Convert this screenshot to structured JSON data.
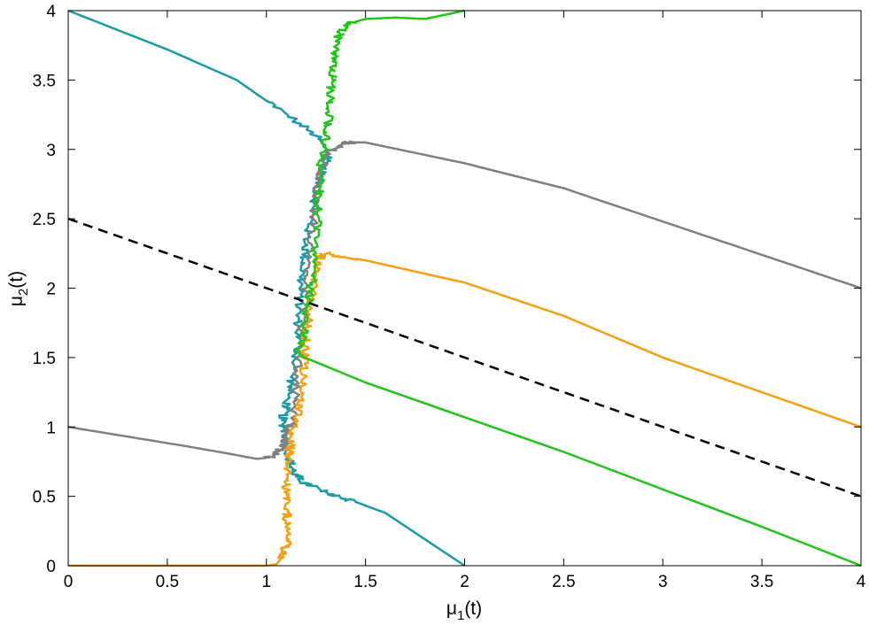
{
  "chart_data": {
    "type": "line",
    "title": "",
    "xlabel": "μ",
    "xlabel_sub": "1",
    "xlabel_tail": "(t)",
    "ylabel": "μ",
    "ylabel_sub": "2",
    "ylabel_tail": "(t)",
    "xlim": [
      0,
      4
    ],
    "ylim": [
      0,
      4
    ],
    "xticks": [
      "0",
      "0.5",
      "1",
      "1.5",
      "2",
      "2.5",
      "3",
      "3.5",
      "4"
    ],
    "yticks": [
      "0",
      "0.5",
      "1",
      "1.5",
      "2",
      "2.5",
      "3",
      "3.5",
      "4"
    ],
    "grid": false,
    "colors": {
      "teal": "#1a9ba8",
      "gray": "#808080",
      "orange": "#f5a00f",
      "green": "#22c41a",
      "dashed": "#000000"
    },
    "series": [
      {
        "name": "teal",
        "color": "#1a9ba8",
        "noisy_from": 1.3,
        "points": [
          [
            0,
            4
          ],
          [
            0.5,
            3.72
          ],
          [
            0.85,
            3.5
          ],
          [
            1.05,
            3.3
          ],
          [
            1.25,
            3.1
          ],
          [
            1.32,
            2.95
          ],
          [
            1.27,
            2.8
          ],
          [
            1.24,
            2.6
          ],
          [
            1.21,
            2.4
          ],
          [
            1.19,
            2.2
          ],
          [
            1.17,
            2.0
          ],
          [
            1.16,
            1.8
          ],
          [
            1.16,
            1.6
          ],
          [
            1.13,
            1.35
          ],
          [
            1.1,
            1.15
          ],
          [
            1.08,
            1.05
          ],
          [
            1.1,
            0.92
          ],
          [
            1.12,
            0.75
          ],
          [
            1.14,
            0.66
          ],
          [
            1.19,
            0.6
          ],
          [
            1.3,
            0.53
          ],
          [
            1.45,
            0.46
          ],
          [
            1.6,
            0.38
          ],
          [
            2.0,
            0.0
          ]
        ]
      },
      {
        "name": "gray",
        "color": "#808080",
        "noisy_from": 0.78,
        "points": [
          [
            0,
            1
          ],
          [
            0.3,
            0.93
          ],
          [
            0.6,
            0.86
          ],
          [
            0.8,
            0.81
          ],
          [
            0.95,
            0.77
          ],
          [
            1.02,
            0.78
          ],
          [
            1.08,
            0.85
          ],
          [
            1.1,
            0.95
          ],
          [
            1.13,
            1.05
          ],
          [
            1.15,
            1.3
          ],
          [
            1.17,
            1.6
          ],
          [
            1.19,
            1.85
          ],
          [
            1.21,
            2.1
          ],
          [
            1.23,
            2.35
          ],
          [
            1.25,
            2.6
          ],
          [
            1.27,
            2.8
          ],
          [
            1.3,
            2.97
          ],
          [
            1.4,
            3.05
          ],
          [
            1.5,
            3.05
          ],
          [
            2.0,
            2.9
          ],
          [
            2.5,
            2.72
          ],
          [
            3.0,
            2.48
          ],
          [
            3.5,
            2.24
          ],
          [
            4.0,
            2.0
          ]
        ]
      },
      {
        "name": "orange",
        "color": "#f5a00f",
        "noisy_from": 0.0,
        "points": [
          [
            0,
            0
          ],
          [
            0.5,
            0
          ],
          [
            1.0,
            0
          ],
          [
            1.05,
            0.01
          ],
          [
            1.08,
            0.06
          ],
          [
            1.1,
            0.15
          ],
          [
            1.1,
            0.3
          ],
          [
            1.11,
            0.45
          ],
          [
            1.1,
            0.6
          ],
          [
            1.11,
            0.78
          ],
          [
            1.13,
            0.9
          ],
          [
            1.15,
            1.05
          ],
          [
            1.17,
            1.2
          ],
          [
            1.19,
            1.45
          ],
          [
            1.2,
            1.65
          ],
          [
            1.22,
            1.85
          ],
          [
            1.24,
            2.05
          ],
          [
            1.26,
            2.2
          ],
          [
            1.3,
            2.25
          ],
          [
            1.5,
            2.2
          ],
          [
            2.0,
            2.04
          ],
          [
            2.5,
            1.8
          ],
          [
            3.0,
            1.5
          ],
          [
            3.5,
            1.25
          ],
          [
            4.0,
            1.0
          ]
        ]
      },
      {
        "name": "green",
        "color": "#22c41a",
        "noisy_from": 1.45,
        "points": [
          [
            1.16,
            1.52
          ],
          [
            1.19,
            1.7
          ],
          [
            1.21,
            1.9
          ],
          [
            1.23,
            2.1
          ],
          [
            1.25,
            2.35
          ],
          [
            1.26,
            2.6
          ],
          [
            1.27,
            2.8
          ],
          [
            1.28,
            2.95
          ],
          [
            1.3,
            3.1
          ],
          [
            1.32,
            3.3
          ],
          [
            1.33,
            3.5
          ],
          [
            1.34,
            3.65
          ],
          [
            1.36,
            3.8
          ],
          [
            1.4,
            3.9
          ],
          [
            1.5,
            3.94
          ],
          [
            1.65,
            3.95
          ],
          [
            1.8,
            3.94
          ],
          [
            1.9,
            3.97
          ],
          [
            2.0,
            4.0
          ],
          [
            2.0,
            4.0
          ]
        ],
        "tail": [
          [
            1.16,
            1.52
          ],
          [
            1.5,
            1.32
          ],
          [
            2.0,
            1.07
          ],
          [
            2.5,
            0.82
          ],
          [
            3.0,
            0.55
          ],
          [
            3.5,
            0.28
          ],
          [
            4.0,
            0.0
          ]
        ]
      },
      {
        "name": "dashed",
        "color": "#000000",
        "dashed": true,
        "points": [
          [
            0,
            2.5
          ],
          [
            4,
            0.5
          ]
        ]
      }
    ]
  }
}
